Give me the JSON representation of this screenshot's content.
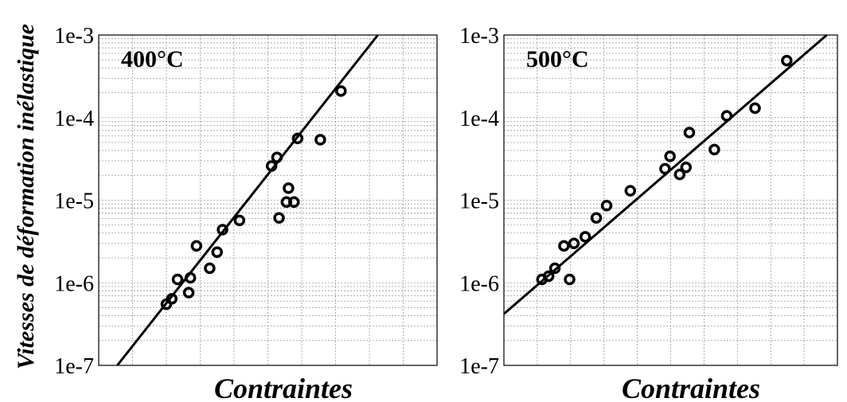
{
  "chart_data": [
    {
      "type": "scatter",
      "title": "400°C",
      "xlabel": "Contraintes",
      "ylabel": "Vitesses de déformation inélastique",
      "yscale": "log",
      "ylim": [
        1e-07,
        0.001
      ],
      "yticks": [
        "1e-3",
        "1e-4",
        "1e-5",
        "1e-6",
        "1e-7"
      ],
      "xlim": [
        0,
        100
      ],
      "grid": true,
      "series": [
        {
          "points": [
            {
              "x": 20.0,
              "y": 5.5e-07
            },
            {
              "x": 21.6,
              "y": 6.4e-07
            },
            {
              "x": 23.3,
              "y": 1.1e-06
            },
            {
              "x": 26.6,
              "y": 7.6e-07
            },
            {
              "x": 27.1,
              "y": 1.15e-06
            },
            {
              "x": 28.9,
              "y": 2.8e-06
            },
            {
              "x": 32.8,
              "y": 1.5e-06
            },
            {
              "x": 35.0,
              "y": 2.35e-06
            },
            {
              "x": 36.6,
              "y": 4.4e-06
            },
            {
              "x": 41.6,
              "y": 5.7e-06
            },
            {
              "x": 51.1,
              "y": 2.6e-05
            },
            {
              "x": 52.7,
              "y": 3.3e-05
            },
            {
              "x": 53.3,
              "y": 6.1e-06
            },
            {
              "x": 55.5,
              "y": 9.5e-06
            },
            {
              "x": 56.1,
              "y": 1.4e-05
            },
            {
              "x": 57.7,
              "y": 9.5e-06
            },
            {
              "x": 58.8,
              "y": 5.6e-05
            },
            {
              "x": 65.5,
              "y": 5.4e-05
            },
            {
              "x": 71.6,
              "y": 0.00021
            }
          ]
        }
      ],
      "fit_line": [
        {
          "x": 5.5,
          "y": 1e-07
        },
        {
          "x": 82.5,
          "y": 0.001
        }
      ]
    },
    {
      "type": "scatter",
      "title": "500°C",
      "xlabel": "Contraintes",
      "yscale": "log",
      "ylim": [
        1e-07,
        0.001
      ],
      "yticks": [
        "1e-3",
        "1e-4",
        "1e-5",
        "1e-6",
        "1e-7"
      ],
      "xlim": [
        0,
        100
      ],
      "grid": true,
      "series": [
        {
          "points": [
            {
              "x": 11.4,
              "y": 1.1e-06
            },
            {
              "x": 13.4,
              "y": 1.2e-06
            },
            {
              "x": 15.3,
              "y": 1.5e-06
            },
            {
              "x": 18.0,
              "y": 2.8e-06
            },
            {
              "x": 19.7,
              "y": 1.1e-06
            },
            {
              "x": 21.0,
              "y": 3e-06
            },
            {
              "x": 24.4,
              "y": 3.6e-06
            },
            {
              "x": 27.7,
              "y": 6.1e-06
            },
            {
              "x": 30.8,
              "y": 8.6e-06
            },
            {
              "x": 37.9,
              "y": 1.3e-05
            },
            {
              "x": 48.3,
              "y": 2.4e-05
            },
            {
              "x": 49.8,
              "y": 3.4e-05
            },
            {
              "x": 52.7,
              "y": 2.05e-05
            },
            {
              "x": 54.6,
              "y": 2.5e-05
            },
            {
              "x": 55.6,
              "y": 6.6e-05
            },
            {
              "x": 63.1,
              "y": 4.1e-05
            },
            {
              "x": 66.8,
              "y": 0.000105
            },
            {
              "x": 75.3,
              "y": 0.00013
            },
            {
              "x": 84.8,
              "y": 0.00049
            }
          ]
        }
      ],
      "fit_line": [
        {
          "x": 0,
          "y": 4.2e-07
        },
        {
          "x": 96.8,
          "y": 0.001
        }
      ]
    }
  ]
}
